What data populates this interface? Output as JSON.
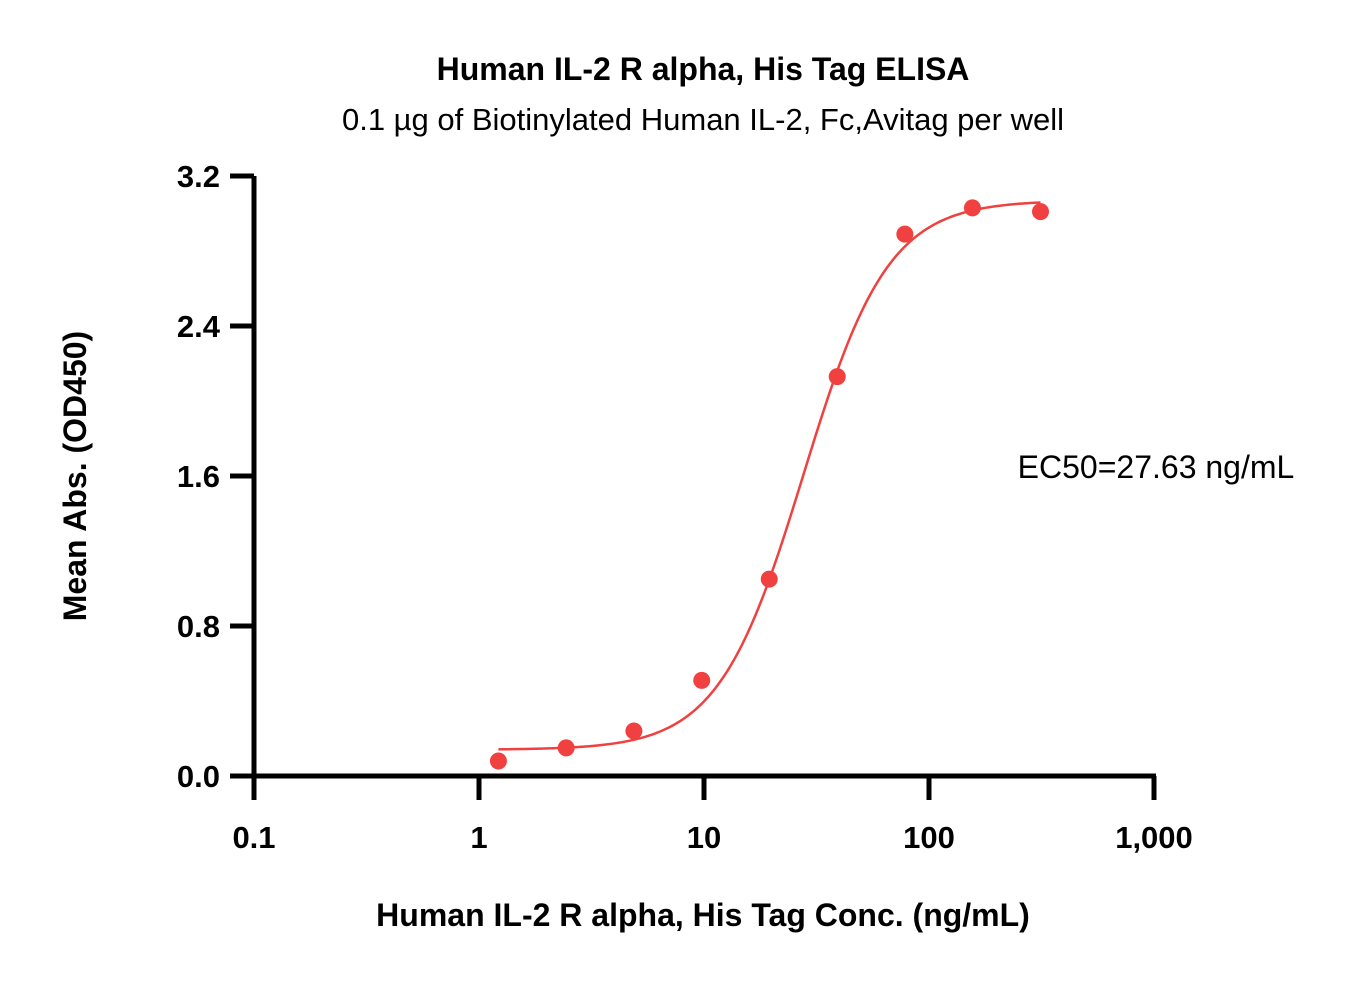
{
  "chart_data": {
    "type": "scatter",
    "title": "Human IL-2 R alpha, His Tag ELISA",
    "subtitle": "0.1 µg of Biotinylated Human IL-2, Fc,Avitag per well",
    "xlabel": "Human IL-2 R alpha, His Tag Conc. (ng/mL)",
    "ylabel": "Mean Abs. (OD450)",
    "x_scale": "log",
    "xlim": [
      0.1,
      1000
    ],
    "ylim": [
      0.0,
      3.2
    ],
    "x_ticks": [
      0.1,
      1,
      10,
      100,
      1000
    ],
    "x_tick_labels": [
      "0.1",
      "1",
      "10",
      "100",
      "1,000"
    ],
    "y_ticks": [
      0.0,
      0.8,
      1.6,
      2.4,
      3.2
    ],
    "y_tick_labels": [
      "0.0",
      "0.8",
      "1.6",
      "2.4",
      "3.2"
    ],
    "annotation": "EC50=27.63 ng/mL",
    "series": [
      {
        "points": [
          {
            "x": 1.22,
            "y": 0.08
          },
          {
            "x": 2.44,
            "y": 0.15
          },
          {
            "x": 4.88,
            "y": 0.24
          },
          {
            "x": 9.77,
            "y": 0.51
          },
          {
            "x": 19.5,
            "y": 1.05
          },
          {
            "x": 39.1,
            "y": 2.13
          },
          {
            "x": 78.1,
            "y": 2.89
          },
          {
            "x": 156,
            "y": 3.03
          },
          {
            "x": 313,
            "y": 3.01
          }
        ],
        "fit": {
          "model": "4PL",
          "bottom": 0.14,
          "top": 3.07,
          "ec50": 27.63,
          "hill": 2.3,
          "x_range": [
            1.22,
            313
          ]
        },
        "color": "#f04040"
      }
    ],
    "grid": false,
    "legend": "none"
  }
}
